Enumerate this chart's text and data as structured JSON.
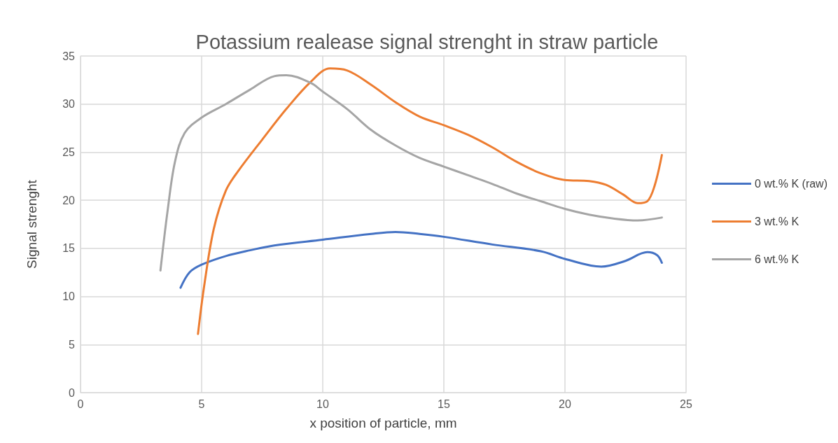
{
  "chart_data": {
    "type": "line",
    "title": "Potassium realease signal strenght in straw particle",
    "xlabel": "x position of particle, mm",
    "ylabel": "Signal strenght",
    "xlim": [
      0,
      25
    ],
    "xticks": [
      0,
      5,
      10,
      15,
      20,
      25
    ],
    "ylim": [
      0,
      35
    ],
    "yticks": [
      0,
      5,
      10,
      15,
      20,
      25,
      30,
      35
    ],
    "grid": true,
    "legend": "right",
    "marker": "none",
    "line_style": "solid",
    "series": [
      {
        "name": "0 wt.% K (raw)",
        "color": "#4472c4",
        "x": [
          4.13,
          4.5,
          5,
          6,
          7,
          8,
          10,
          12,
          13,
          14,
          15,
          17,
          19,
          20,
          21.5,
          22.5,
          23.4,
          23.8,
          24
        ],
        "values": [
          10.9,
          12.5,
          13.3,
          14.2,
          14.8,
          15.3,
          15.9,
          16.5,
          16.7,
          16.5,
          16.2,
          15.4,
          14.7,
          13.9,
          13.1,
          13.7,
          14.6,
          14.3,
          13.5
        ]
      },
      {
        "name": "3 wt.% K",
        "color": "#ed7d31",
        "x": [
          4.85,
          5.1,
          5.5,
          6,
          6.5,
          7.5,
          8.5,
          9.5,
          10.3,
          11,
          12,
          13,
          14,
          15,
          16,
          17,
          18,
          19,
          20,
          21,
          21.7,
          22.4,
          23,
          23.4,
          23.7,
          24
        ],
        "values": [
          6.1,
          11,
          17,
          21,
          23,
          26.3,
          29.5,
          32.3,
          33.7,
          33.5,
          32,
          30.2,
          28.7,
          27.8,
          26.8,
          25.5,
          24,
          22.8,
          22.1,
          22,
          21.6,
          20.6,
          19.7,
          19.9,
          21.5,
          24.7
        ]
      },
      {
        "name": "6 wt.% K",
        "color": "#a5a5a5",
        "x": [
          3.3,
          3.6,
          3.9,
          4.3,
          5,
          6,
          7,
          8,
          8.5,
          9.5,
          10,
          11,
          12,
          13,
          14,
          15,
          16,
          17,
          18,
          19,
          20,
          21,
          22,
          23,
          24
        ],
        "values": [
          12.7,
          19,
          24,
          27,
          28.6,
          30,
          31.5,
          32.9,
          33,
          32.2,
          31.3,
          29.5,
          27.3,
          25.7,
          24.4,
          23.5,
          22.6,
          21.7,
          20.7,
          19.9,
          19.1,
          18.5,
          18.1,
          17.9,
          18.2
        ]
      }
    ]
  }
}
